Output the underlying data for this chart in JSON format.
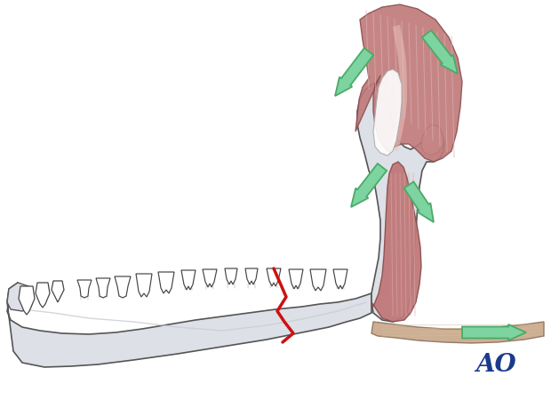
{
  "background_color": "#ffffff",
  "figure_width": 6.2,
  "figure_height": 4.59,
  "dpi": 100,
  "ao_text": "AO",
  "ao_color": "#1a3a8c",
  "ao_fontsize": 20,
  "arrow_color": "#7dd4a0",
  "arrow_edge": "#4aaa68",
  "mandible_fill": "#e8eaed",
  "mandible_fill2": "#d0d4db",
  "mandible_edge": "#555555",
  "muscle_main": "#c07878",
  "muscle_light": "#d4a090",
  "muscle_dark": "#a05858",
  "muscle_stripe": "#d8a8a8",
  "muscle_stripe2": "#e8c8c0",
  "fracture_color": "#cc1111",
  "tendon_fill": "#c8a888",
  "tendon_stripe": "#d8bca8",
  "white_tendon": "#f0eeec",
  "condyle_fill": "#e8eaed"
}
